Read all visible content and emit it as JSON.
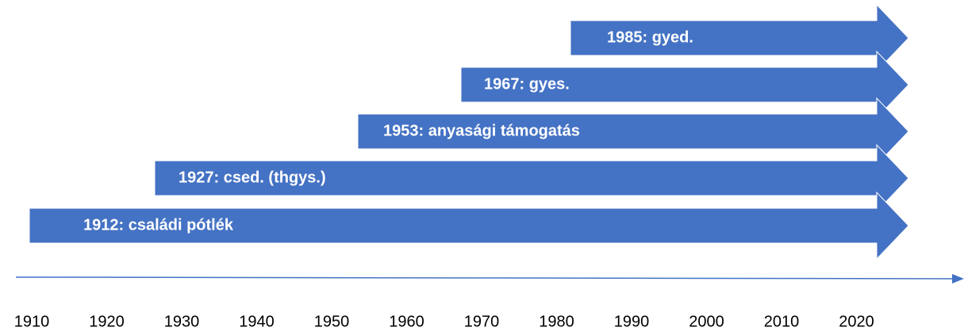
{
  "arrows": [
    {
      "label": "1985: gyed."
    },
    {
      "label": "1967: gyes."
    },
    {
      "label": "1953: anyasági támogatás"
    },
    {
      "label": "1927: csed. (thgys.)"
    },
    {
      "label": "1912: családi pótlék"
    }
  ],
  "axis": {
    "labels": [
      "1910",
      "1920",
      "1930",
      "1940",
      "1950",
      "1960",
      "1970",
      "1980",
      "1990",
      "2000",
      "2010",
      "2020"
    ]
  }
}
